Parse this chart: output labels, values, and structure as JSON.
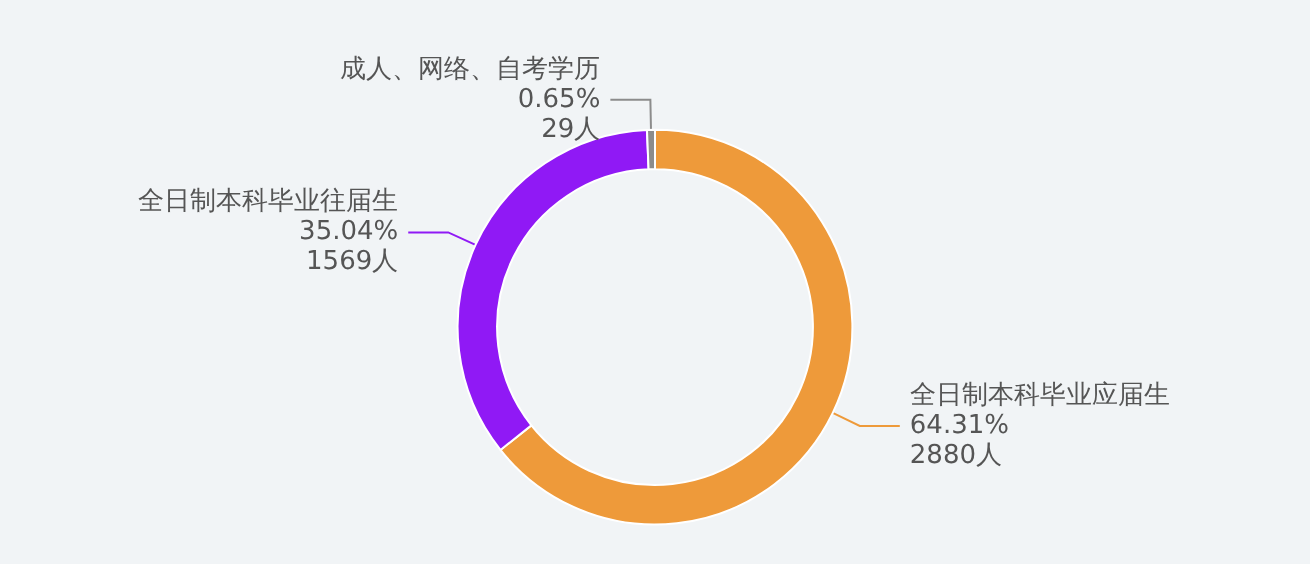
{
  "chart_data": {
    "type": "donut",
    "categories": [
      "全日制本科毕业应届生",
      "全日制本科毕业往届生",
      "成人、网络、自考学历"
    ],
    "values": [
      2880,
      1569,
      29
    ],
    "colors": [
      "#ee9a3a",
      "#9019f5",
      "#8c8c8c"
    ],
    "value_labels": [
      "64.31%\n2880人",
      "35.04%\n1569人",
      "0.65%\n29人"
    ],
    "legend": false
  }
}
